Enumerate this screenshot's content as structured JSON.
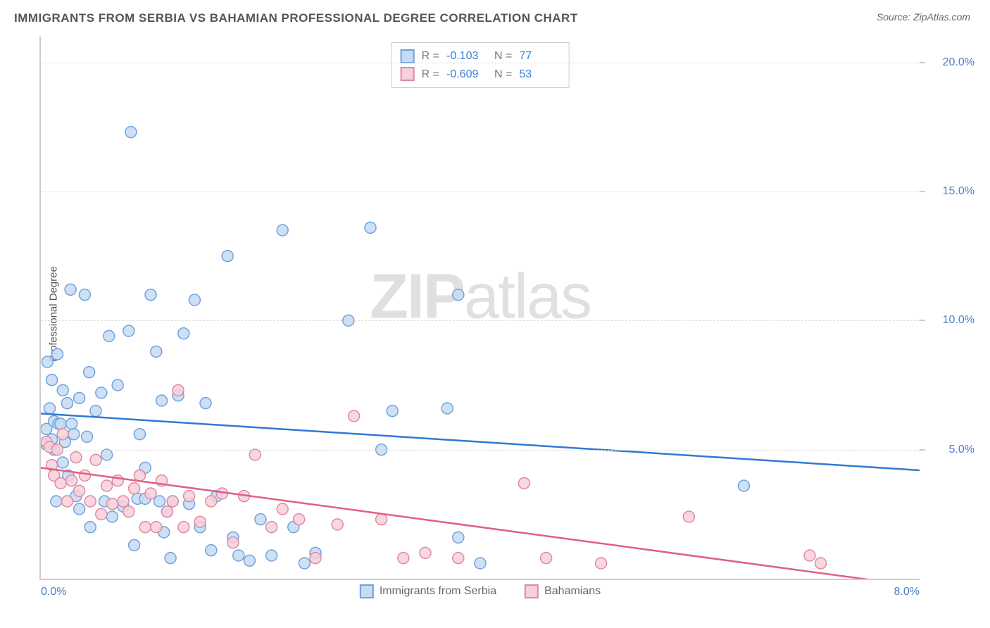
{
  "title": "IMMIGRANTS FROM SERBIA VS BAHAMIAN PROFESSIONAL DEGREE CORRELATION CHART",
  "source_prefix": "Source: ",
  "source": "ZipAtlas.com",
  "ylabel": "Professional Degree",
  "watermark": {
    "part1": "ZIP",
    "part2": "atlas"
  },
  "chart": {
    "type": "scatter",
    "xlim": [
      0,
      8
    ],
    "ylim": [
      0,
      21
    ],
    "x_ticks": [
      {
        "value": 0.0,
        "label": "0.0%"
      },
      {
        "value": 8.0,
        "label": "8.0%"
      }
    ],
    "x_tick_fontsize": 16,
    "y_ticks": [
      {
        "value": 5.0,
        "label": "5.0%"
      },
      {
        "value": 10.0,
        "label": "10.0%"
      },
      {
        "value": 15.0,
        "label": "15.0%"
      },
      {
        "value": 20.0,
        "label": "20.0%"
      }
    ],
    "y_tick_fontsize": 16,
    "axis_color": "#cccccc",
    "grid_color": "#dddddd",
    "tick_label_color": "#4a7ec9",
    "background_color": "#ffffff",
    "marker_radius": 8,
    "marker_stroke_width": 1.5,
    "trendline_width": 2.5,
    "legend_border_color": "#cccccc",
    "series": [
      {
        "id": "serbia",
        "label": "Immigrants from Serbia",
        "fill": "#c7dbf2",
        "stroke": "#6fa3df",
        "line_color": "#2f79d6",
        "R_label": "R =",
        "R": "-0.103",
        "N_label": "N =",
        "N": "77",
        "trend": {
          "x1": 0.0,
          "y1": 6.4,
          "x2": 8.0,
          "y2": 4.2
        },
        "points": [
          [
            0.05,
            5.2
          ],
          [
            0.05,
            5.8
          ],
          [
            0.06,
            8.4
          ],
          [
            0.08,
            6.6
          ],
          [
            0.1,
            5.4
          ],
          [
            0.1,
            7.7
          ],
          [
            0.12,
            5.0
          ],
          [
            0.12,
            6.1
          ],
          [
            0.14,
            3.0
          ],
          [
            0.15,
            8.7
          ],
          [
            0.16,
            6.0
          ],
          [
            0.18,
            6.0
          ],
          [
            0.2,
            4.5
          ],
          [
            0.2,
            7.3
          ],
          [
            0.22,
            5.3
          ],
          [
            0.24,
            6.8
          ],
          [
            0.25,
            4.0
          ],
          [
            0.27,
            11.2
          ],
          [
            0.28,
            6.0
          ],
          [
            0.3,
            5.6
          ],
          [
            0.32,
            3.2
          ],
          [
            0.35,
            7.0
          ],
          [
            0.4,
            11.0
          ],
          [
            0.42,
            5.5
          ],
          [
            0.44,
            8.0
          ],
          [
            0.45,
            2.0
          ],
          [
            0.5,
            6.5
          ],
          [
            0.55,
            7.2
          ],
          [
            0.58,
            3.0
          ],
          [
            0.6,
            4.8
          ],
          [
            0.62,
            9.4
          ],
          [
            0.65,
            2.4
          ],
          [
            0.7,
            7.5
          ],
          [
            0.75,
            2.8
          ],
          [
            0.8,
            9.6
          ],
          [
            0.82,
            17.3
          ],
          [
            0.85,
            1.3
          ],
          [
            0.88,
            3.1
          ],
          [
            0.9,
            5.6
          ],
          [
            0.95,
            4.3
          ],
          [
            1.0,
            11.0
          ],
          [
            1.05,
            8.8
          ],
          [
            1.08,
            3.0
          ],
          [
            1.1,
            6.9
          ],
          [
            1.12,
            1.8
          ],
          [
            1.15,
            2.6
          ],
          [
            1.18,
            0.8
          ],
          [
            1.2,
            3.0
          ],
          [
            1.25,
            7.1
          ],
          [
            1.3,
            9.5
          ],
          [
            1.35,
            2.9
          ],
          [
            1.4,
            10.8
          ],
          [
            1.45,
            2.0
          ],
          [
            1.5,
            6.8
          ],
          [
            1.55,
            1.1
          ],
          [
            1.6,
            3.2
          ],
          [
            1.7,
            12.5
          ],
          [
            1.75,
            1.6
          ],
          [
            1.8,
            0.9
          ],
          [
            1.9,
            0.7
          ],
          [
            2.0,
            2.3
          ],
          [
            2.1,
            0.9
          ],
          [
            2.2,
            13.5
          ],
          [
            2.3,
            2.0
          ],
          [
            2.4,
            0.6
          ],
          [
            2.5,
            1.0
          ],
          [
            2.8,
            10.0
          ],
          [
            3.0,
            13.6
          ],
          [
            3.1,
            5.0
          ],
          [
            3.2,
            6.5
          ],
          [
            3.7,
            6.6
          ],
          [
            3.8,
            11.0
          ],
          [
            3.8,
            1.6
          ],
          [
            4.0,
            0.6
          ],
          [
            6.4,
            3.6
          ],
          [
            0.95,
            3.1
          ],
          [
            0.35,
            2.7
          ]
        ]
      },
      {
        "id": "bahamians",
        "label": "Bahamians",
        "fill": "#f6d0da",
        "stroke": "#e288a2",
        "line_color": "#e0607f",
        "R_label": "R =",
        "R": "-0.609",
        "N_label": "N =",
        "N": "53",
        "trend": {
          "x1": 0.0,
          "y1": 4.3,
          "x2": 8.0,
          "y2": -0.3
        },
        "points": [
          [
            0.05,
            5.3
          ],
          [
            0.08,
            5.1
          ],
          [
            0.1,
            4.4
          ],
          [
            0.12,
            4.0
          ],
          [
            0.15,
            5.0
          ],
          [
            0.18,
            3.7
          ],
          [
            0.2,
            5.6
          ],
          [
            0.24,
            3.0
          ],
          [
            0.28,
            3.8
          ],
          [
            0.32,
            4.7
          ],
          [
            0.35,
            3.4
          ],
          [
            0.4,
            4.0
          ],
          [
            0.45,
            3.0
          ],
          [
            0.5,
            4.6
          ],
          [
            0.55,
            2.5
          ],
          [
            0.6,
            3.6
          ],
          [
            0.65,
            2.9
          ],
          [
            0.7,
            3.8
          ],
          [
            0.75,
            3.0
          ],
          [
            0.8,
            2.6
          ],
          [
            0.85,
            3.5
          ],
          [
            0.9,
            4.0
          ],
          [
            0.95,
            2.0
          ],
          [
            1.0,
            3.3
          ],
          [
            1.05,
            2.0
          ],
          [
            1.1,
            3.8
          ],
          [
            1.15,
            2.6
          ],
          [
            1.2,
            3.0
          ],
          [
            1.25,
            7.3
          ],
          [
            1.3,
            2.0
          ],
          [
            1.35,
            3.2
          ],
          [
            1.45,
            2.2
          ],
          [
            1.55,
            3.0
          ],
          [
            1.65,
            3.3
          ],
          [
            1.75,
            1.4
          ],
          [
            1.85,
            3.2
          ],
          [
            1.95,
            4.8
          ],
          [
            2.1,
            2.0
          ],
          [
            2.2,
            2.7
          ],
          [
            2.35,
            2.3
          ],
          [
            2.5,
            0.8
          ],
          [
            2.7,
            2.1
          ],
          [
            2.85,
            6.3
          ],
          [
            3.1,
            2.3
          ],
          [
            3.3,
            0.8
          ],
          [
            3.5,
            1.0
          ],
          [
            3.8,
            0.8
          ],
          [
            4.4,
            3.7
          ],
          [
            4.6,
            0.8
          ],
          [
            5.1,
            0.6
          ],
          [
            5.9,
            2.4
          ],
          [
            7.0,
            0.9
          ],
          [
            7.1,
            0.6
          ]
        ]
      }
    ]
  }
}
